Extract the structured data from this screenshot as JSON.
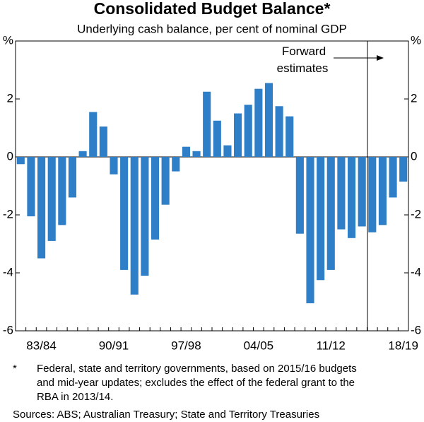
{
  "chart_data": {
    "type": "bar",
    "title": "Consolidated Budget Balance*",
    "subtitle": "Underlying cash balance, per cent of nominal GDP",
    "annotation": "Forward estimates",
    "categories": [
      null,
      null,
      "83/84",
      null,
      null,
      null,
      null,
      null,
      null,
      "90/91",
      null,
      null,
      null,
      null,
      null,
      null,
      "97/98",
      null,
      null,
      null,
      null,
      null,
      null,
      "04/05",
      null,
      null,
      null,
      null,
      null,
      null,
      "11/12",
      null,
      null,
      null,
      null,
      null,
      null,
      "18/19"
    ],
    "values": [
      -0.25,
      -2.05,
      -3.5,
      -2.9,
      -2.35,
      -1.4,
      0.2,
      1.55,
      1.05,
      -0.6,
      -3.9,
      -4.75,
      -4.1,
      -2.85,
      -1.65,
      -0.5,
      0.35,
      0.2,
      2.25,
      1.25,
      0.4,
      1.5,
      1.8,
      2.35,
      2.55,
      1.75,
      1.4,
      -2.65,
      -5.05,
      -4.25,
      -3.9,
      -2.5,
      -2.8,
      -2.4,
      -2.6,
      -2.35,
      -1.4,
      -0.85
    ],
    "color": "#2e7fc7",
    "ylim": [
      -6,
      4
    ],
    "yticks": [
      {
        "value": 4,
        "label": "%"
      },
      2,
      0,
      -2,
      -4,
      -6
    ],
    "footnote_marker": "*",
    "footnote": [
      "Federal, state and territory governments, based on 2015/16 budgets",
      "and mid-year updates; excludes the effect of the federal grant to the",
      "RBA in 2013/14."
    ],
    "sources": "Sources:   ABS; Australian Treasury; State and Territory Treasuries"
  }
}
